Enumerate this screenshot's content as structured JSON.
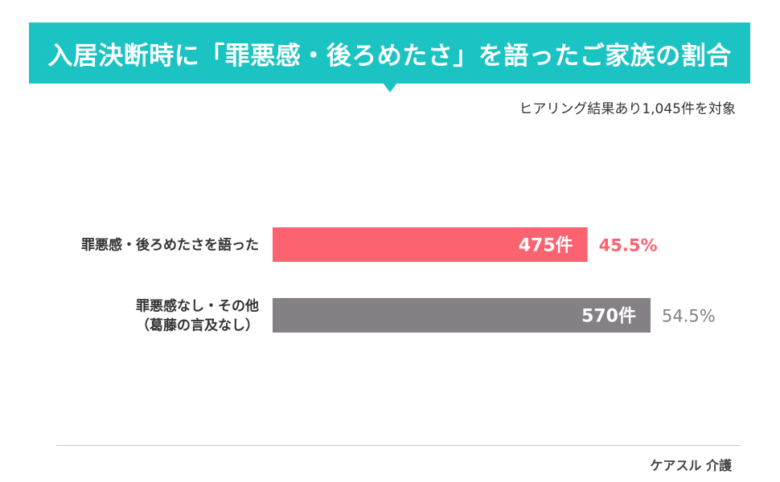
{
  "title": "入居決断時に「罪悪感・後ろめたさ」を語ったご家族の割合",
  "subtitle": "ヒアリング結果あり1,045件を対象",
  "footer": "ケアスル 介護",
  "colors": {
    "banner": "#1bc3c3",
    "series_1": "#fb6370",
    "series_2": "#858085"
  },
  "chart_data": {
    "type": "bar",
    "orientation": "horizontal",
    "total": 1045,
    "categories": [
      [
        "罪悪感・後ろめたさを語った"
      ],
      [
        "罪悪感なし・その他",
        "（葛藤の言及なし）"
      ]
    ],
    "values": [
      475,
      570
    ],
    "value_labels": [
      "475件",
      "570件"
    ],
    "percent_labels": [
      "45.5%",
      "54.5%"
    ],
    "percents": [
      45.5,
      54.5
    ],
    "xlim": [
      0,
      570
    ],
    "grid": false,
    "legend": "none"
  }
}
